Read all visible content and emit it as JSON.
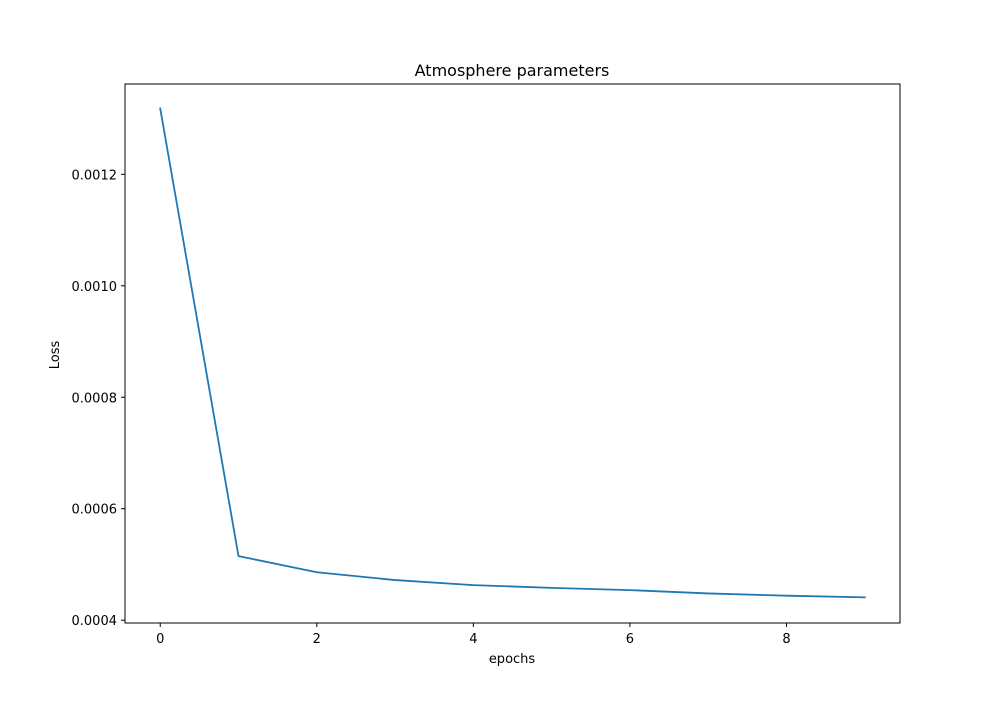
{
  "chart_data": {
    "type": "line",
    "title": "Atmosphere parameters",
    "xlabel": "epochs",
    "ylabel": "Loss",
    "xlim": [
      -0.45,
      9.45
    ],
    "ylim": [
      0.000395,
      0.001362
    ],
    "xticks": [
      0,
      2,
      4,
      6,
      8
    ],
    "xtick_labels": [
      "0",
      "2",
      "4",
      "6",
      "8"
    ],
    "yticks": [
      0.0004,
      0.0006,
      0.0008,
      0.001,
      0.0012
    ],
    "ytick_labels": [
      "0.0004",
      "0.0006",
      "0.0008",
      "0.0010",
      "0.0012"
    ],
    "grid": false,
    "series": [
      {
        "color": "#1f77b4",
        "x": [
          0,
          1,
          2,
          3,
          4,
          5,
          6,
          7,
          8,
          9
        ],
        "values": [
          0.001318,
          0.000515,
          0.000486,
          0.000472,
          0.000463,
          0.000458,
          0.000454,
          0.000448,
          0.000444,
          0.000441
        ]
      }
    ]
  }
}
